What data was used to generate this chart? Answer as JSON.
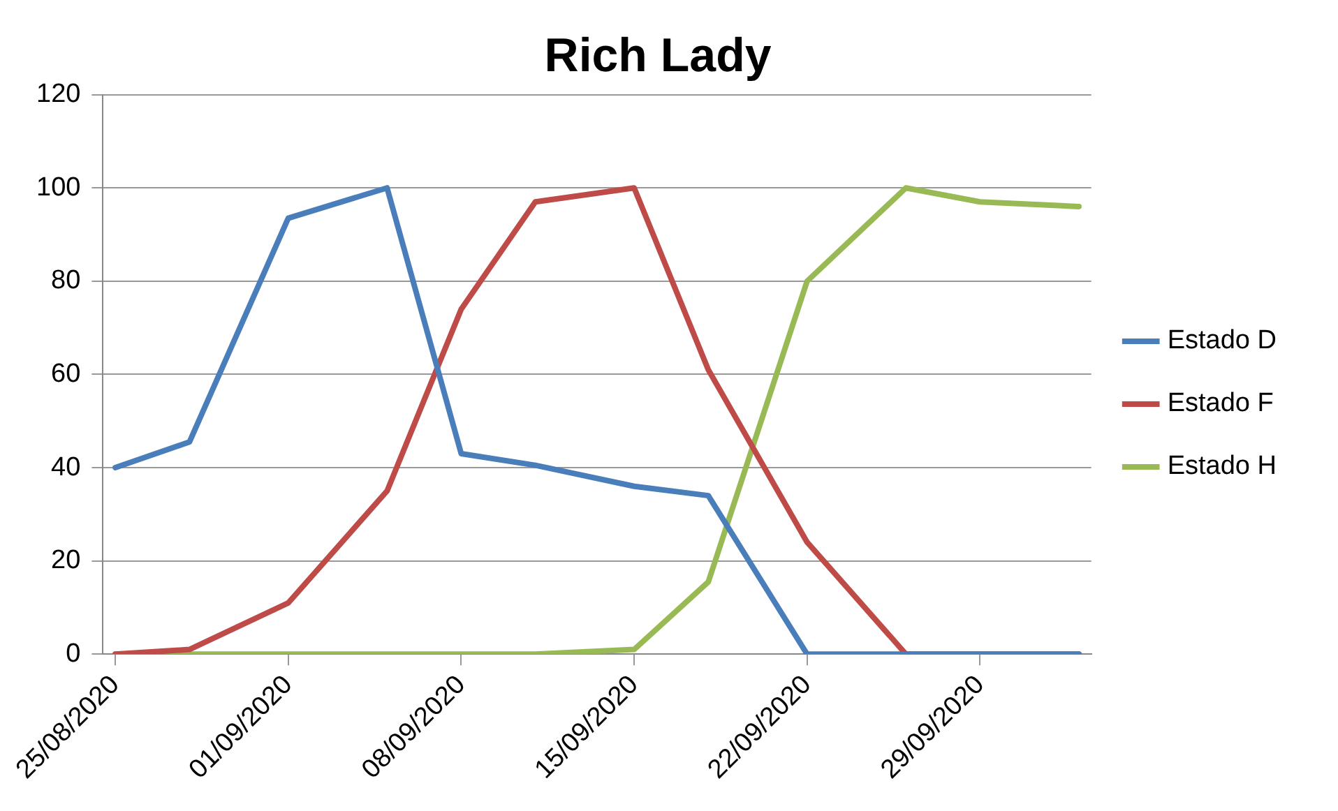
{
  "chart_data": {
    "type": "line",
    "title": "Rich Lady",
    "x": [
      "2020-08-25",
      "2020-08-28",
      "2020-09-01",
      "2020-09-05",
      "2020-09-08",
      "2020-09-11",
      "2020-09-15",
      "2020-09-18",
      "2020-09-22",
      "2020-09-26",
      "2020-09-29",
      "2020-10-03"
    ],
    "series": [
      {
        "name": "Estado D",
        "color": "#4a7ebb",
        "values": [
          40,
          45.5,
          93.5,
          100,
          43,
          40.5,
          36,
          34,
          0,
          0,
          0,
          0
        ]
      },
      {
        "name": "Estado F",
        "color": "#be4b48",
        "values": [
          0,
          1,
          11,
          35,
          74,
          97,
          100,
          61,
          24,
          0,
          0,
          0
        ]
      },
      {
        "name": "Estado H",
        "color": "#98b954",
        "values": [
          0,
          0,
          0,
          0,
          0,
          0,
          1,
          15.5,
          80,
          100,
          97,
          96
        ]
      }
    ],
    "xlim": [
      "2020-08-24T12:00",
      "2020-10-03T12:00"
    ],
    "xticks": [
      {
        "value": "2020-08-25",
        "label": "25/08/2020"
      },
      {
        "value": "2020-09-01",
        "label": "01/09/2020"
      },
      {
        "value": "2020-09-08",
        "label": "08/09/2020"
      },
      {
        "value": "2020-09-15",
        "label": "15/09/2020"
      },
      {
        "value": "2020-09-22",
        "label": "22/09/2020"
      },
      {
        "value": "2020-09-29",
        "label": "29/09/2020"
      }
    ],
    "ylim": [
      0,
      120
    ],
    "yticks": [
      0,
      20,
      40,
      60,
      80,
      100,
      120
    ],
    "grid": "y",
    "legend": "right",
    "marker": "none",
    "line_style": "solid"
  }
}
